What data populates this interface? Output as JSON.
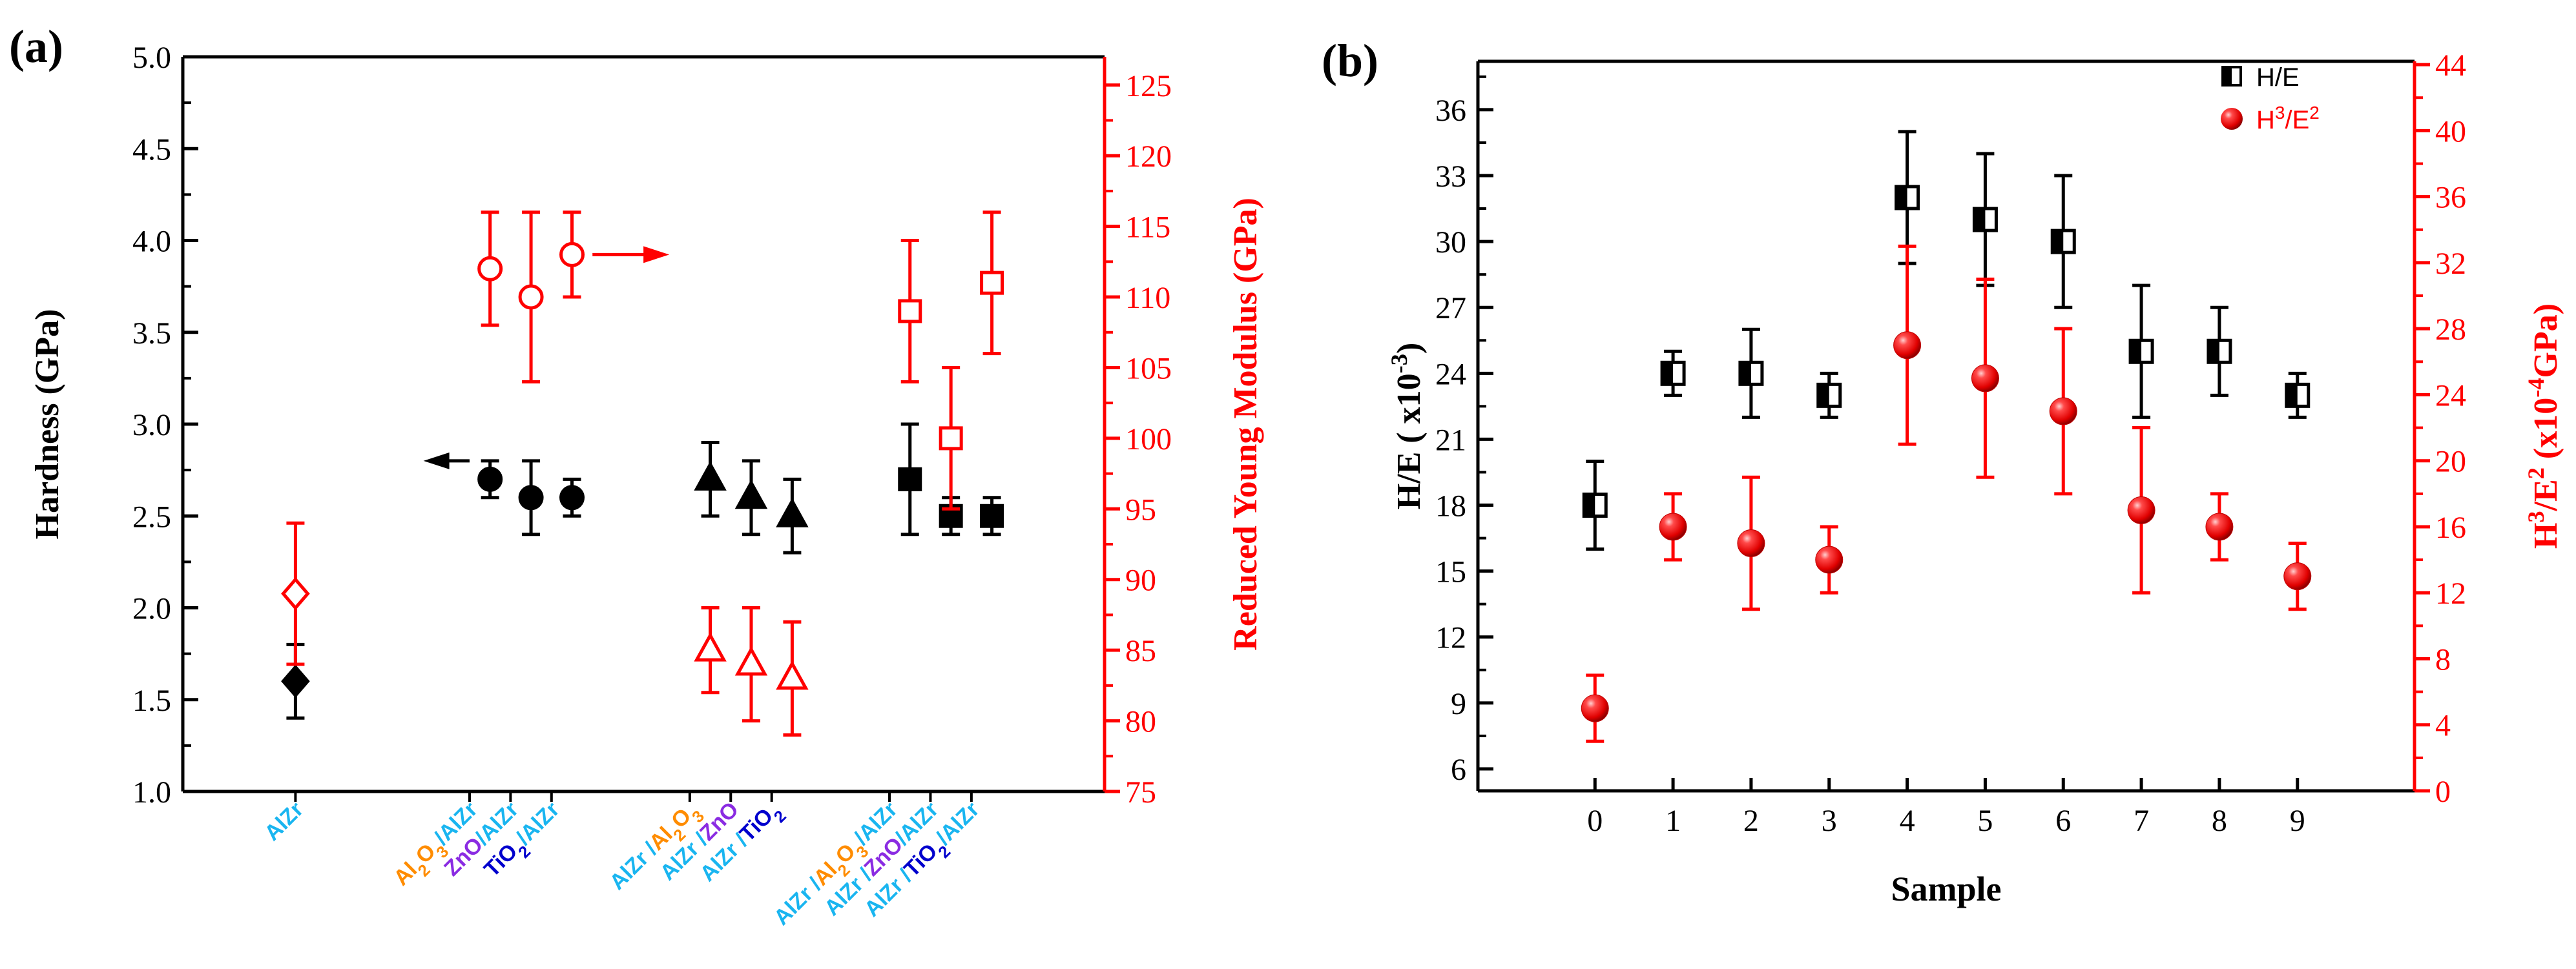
{
  "chart_data": [
    {
      "panel": "(a)",
      "type": "scatter",
      "ylabel": "Hardness (GPa)",
      "y2label": "Reduced Young Modulus (GPa)",
      "ylim": [
        1.0,
        5.0
      ],
      "y2lim": [
        75,
        127
      ],
      "yticks": [
        "1.0",
        "1.5",
        "2.0",
        "2.5",
        "3.0",
        "3.5",
        "4.0",
        "4.5",
        "5.0"
      ],
      "y2ticks": [
        "75",
        "80",
        "85",
        "90",
        "95",
        "100",
        "105",
        "110",
        "115",
        "120",
        "125"
      ],
      "xlim": [
        0,
        18
      ],
      "categories": [
        {
          "x": 2.2,
          "parts": [
            {
              "t": "AlZr",
              "c": "#19b5f0"
            }
          ]
        },
        {
          "x": 5.6,
          "parts": [
            {
              "t": "Al",
              "c": "#ff8c00"
            },
            {
              "t": "2",
              "c": "#ff8c00",
              "sub": true
            },
            {
              "t": "O",
              "c": "#ff8c00"
            },
            {
              "t": "3",
              "c": "#ff8c00",
              "sub": true
            },
            {
              "t": "/AlZr",
              "c": "#19b5f0"
            }
          ]
        },
        {
          "x": 6.4,
          "parts": [
            {
              "t": "ZnO",
              "c": "#8a2be2"
            },
            {
              "t": "/AlZr",
              "c": "#19b5f0"
            }
          ]
        },
        {
          "x": 7.2,
          "parts": [
            {
              "t": "TiO",
              "c": "#0000cd"
            },
            {
              "t": "2",
              "c": "#0000cd",
              "sub": true
            },
            {
              "t": "/AlZr",
              "c": "#19b5f0"
            }
          ]
        },
        {
          "x": 9.9,
          "parts": [
            {
              "t": "AlZr /",
              "c": "#19b5f0"
            },
            {
              "t": "Al",
              "c": "#ff8c00"
            },
            {
              "t": "2",
              "c": "#ff8c00",
              "sub": true
            },
            {
              "t": "O",
              "c": "#ff8c00"
            },
            {
              "t": "3",
              "c": "#ff8c00",
              "sub": true
            }
          ]
        },
        {
          "x": 10.7,
          "parts": [
            {
              "t": "AlZr /",
              "c": "#19b5f0"
            },
            {
              "t": "ZnO",
              "c": "#8a2be2"
            }
          ]
        },
        {
          "x": 11.5,
          "parts": [
            {
              "t": "AlZr /",
              "c": "#19b5f0"
            },
            {
              "t": "TiO",
              "c": "#0000cd"
            },
            {
              "t": "2",
              "c": "#0000cd",
              "sub": true
            }
          ]
        },
        {
          "x": 13.8,
          "parts": [
            {
              "t": "AlZr /",
              "c": "#19b5f0"
            },
            {
              "t": "Al",
              "c": "#ff8c00"
            },
            {
              "t": "2",
              "c": "#ff8c00",
              "sub": true
            },
            {
              "t": "O",
              "c": "#ff8c00"
            },
            {
              "t": "3",
              "c": "#ff8c00",
              "sub": true
            },
            {
              "t": "/AlZr",
              "c": "#19b5f0"
            }
          ]
        },
        {
          "x": 14.6,
          "parts": [
            {
              "t": "AlZr /",
              "c": "#19b5f0"
            },
            {
              "t": "ZnO",
              "c": "#8a2be2"
            },
            {
              "t": "/AlZr",
              "c": "#19b5f0"
            }
          ]
        },
        {
          "x": 15.4,
          "parts": [
            {
              "t": "AlZr /",
              "c": "#19b5f0"
            },
            {
              "t": "TiO",
              "c": "#0000cd"
            },
            {
              "t": "2",
              "c": "#0000cd",
              "sub": true
            },
            {
              "t": "/AlZr",
              "c": "#19b5f0"
            }
          ]
        }
      ],
      "series": [
        {
          "name": "Hardness",
          "axis": "left",
          "color": "#000000",
          "filled": true,
          "points": [
            {
              "x": 2.2,
              "y": 1.6,
              "err": 0.2,
              "marker": "diamond"
            },
            {
              "x": 6.0,
              "y": 2.7,
              "err": 0.1,
              "marker": "circle"
            },
            {
              "x": 6.8,
              "y": 2.6,
              "err": 0.2,
              "marker": "circle"
            },
            {
              "x": 7.6,
              "y": 2.6,
              "err": 0.1,
              "marker": "circle"
            },
            {
              "x": 10.3,
              "y": 2.7,
              "err": 0.2,
              "marker": "triangle"
            },
            {
              "x": 11.1,
              "y": 2.6,
              "err": 0.2,
              "marker": "triangle"
            },
            {
              "x": 11.9,
              "y": 2.5,
              "err": 0.2,
              "marker": "triangle"
            },
            {
              "x": 14.2,
              "y": 2.7,
              "err": 0.3,
              "marker": "square"
            },
            {
              "x": 15.0,
              "y": 2.5,
              "err": 0.1,
              "marker": "square"
            },
            {
              "x": 15.8,
              "y": 2.5,
              "err": 0.1,
              "marker": "square"
            }
          ]
        },
        {
          "name": "Reduced Young Modulus",
          "axis": "right",
          "color": "#ff0000",
          "filled": false,
          "points": [
            {
              "x": 2.2,
              "y": 89,
              "err": 5,
              "marker": "diamond"
            },
            {
              "x": 6.0,
              "y": 112,
              "err": 4,
              "marker": "circle"
            },
            {
              "x": 6.8,
              "y": 110,
              "err": 6,
              "marker": "circle"
            },
            {
              "x": 7.6,
              "y": 113,
              "err": 3,
              "marker": "circle"
            },
            {
              "x": 10.3,
              "y": 85,
              "err": 3,
              "marker": "triangle"
            },
            {
              "x": 11.1,
              "y": 84,
              "err": 4,
              "marker": "triangle"
            },
            {
              "x": 11.9,
              "y": 83,
              "err": 4,
              "marker": "triangle"
            },
            {
              "x": 14.2,
              "y": 109,
              "err": 5,
              "marker": "square"
            },
            {
              "x": 15.0,
              "y": 100,
              "err": 5,
              "marker": "square"
            },
            {
              "x": 15.8,
              "y": 111,
              "err": 5,
              "marker": "square"
            }
          ]
        }
      ],
      "annotations": [
        {
          "text": "arrow pointing left to Hardness axis",
          "axis": "left",
          "x_from": 5.6,
          "x_to": 4.7,
          "y": 2.8,
          "color": "#000000"
        },
        {
          "text": "arrow pointing right to Modulus axis",
          "axis": "right",
          "x_from": 8.0,
          "x_to": 9.5,
          "y": 113,
          "color": "#ff0000"
        }
      ]
    },
    {
      "panel": "(b)",
      "type": "scatter",
      "xlabel": "Sample",
      "ylabel_parts": [
        {
          "t": "H/E ( x10"
        },
        {
          "t": "-3",
          "sup": true
        },
        {
          "t": ")"
        }
      ],
      "y2label_parts": [
        {
          "t": "H"
        },
        {
          "t": "3",
          "sup": true
        },
        {
          "t": "/E"
        },
        {
          "t": "2",
          "sup": true
        },
        {
          "t": " (x10"
        },
        {
          "t": "-4",
          "sup": true
        },
        {
          "t": "GPa)"
        }
      ],
      "xlim": [
        -1.5,
        10.5
      ],
      "ylim": [
        5,
        38.2
      ],
      "y2lim": [
        0,
        44.2
      ],
      "xticks": [
        "0",
        "1",
        "2",
        "3",
        "4",
        "5",
        "6",
        "7",
        "8",
        "9"
      ],
      "yticks": [
        "6",
        "9",
        "12",
        "15",
        "18",
        "21",
        "24",
        "27",
        "30",
        "33",
        "36"
      ],
      "y2ticks": [
        "0",
        "4",
        "8",
        "12",
        "16",
        "20",
        "24",
        "28",
        "32",
        "36",
        "40",
        "44"
      ],
      "legend": [
        {
          "label_parts": [
            {
              "t": "H/E"
            }
          ],
          "marker": "half-square",
          "color": "#000000"
        },
        {
          "label_parts": [
            {
              "t": "H"
            },
            {
              "t": "3",
              "sup": true
            },
            {
              "t": "/E"
            },
            {
              "t": "2",
              "sup": true
            }
          ],
          "marker": "ball",
          "color": "#ff0000"
        }
      ],
      "legend_position": "top-right",
      "series": [
        {
          "name": "H/E",
          "axis": "left",
          "color": "#000000",
          "points": [
            {
              "x": 0,
              "y": 18,
              "err": 2
            },
            {
              "x": 1,
              "y": 24,
              "err": 1
            },
            {
              "x": 2,
              "y": 24,
              "err": 2
            },
            {
              "x": 3,
              "y": 23,
              "err": 1
            },
            {
              "x": 4,
              "y": 32,
              "err": 3
            },
            {
              "x": 5,
              "y": 31,
              "err": 3
            },
            {
              "x": 6,
              "y": 30,
              "err": 3
            },
            {
              "x": 7,
              "y": 25,
              "err": 3
            },
            {
              "x": 8,
              "y": 25,
              "err": 2
            },
            {
              "x": 9,
              "y": 23,
              "err": 1
            }
          ]
        },
        {
          "name": "H3/E2",
          "axis": "right",
          "color": "#ff0000",
          "points": [
            {
              "x": 0,
              "y": 5,
              "err": 2
            },
            {
              "x": 1,
              "y": 16,
              "err": 2
            },
            {
              "x": 2,
              "y": 15,
              "err": 4
            },
            {
              "x": 3,
              "y": 14,
              "err": 2
            },
            {
              "x": 4,
              "y": 27,
              "err": 6
            },
            {
              "x": 5,
              "y": 25,
              "err": 6
            },
            {
              "x": 6,
              "y": 23,
              "err": 5
            },
            {
              "x": 7,
              "y": 17,
              "err": 5
            },
            {
              "x": 8,
              "y": 16,
              "err": 2
            },
            {
              "x": 9,
              "y": 13,
              "err": 2
            }
          ]
        }
      ]
    }
  ]
}
